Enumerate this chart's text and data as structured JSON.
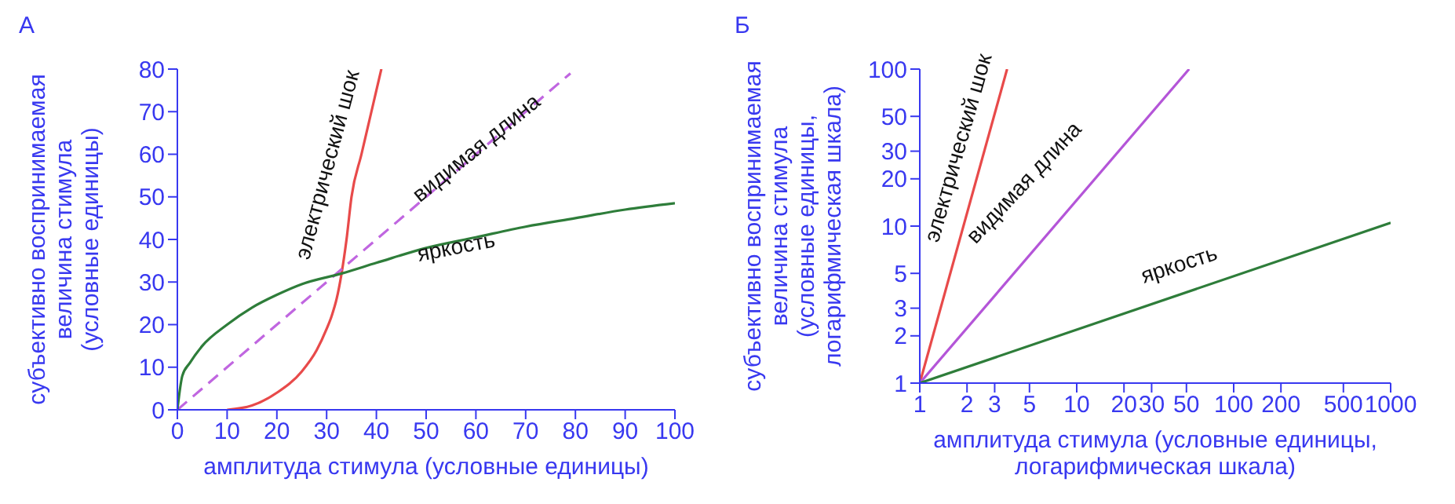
{
  "chart_data": [
    {
      "type": "line",
      "title": "А",
      "xlabel": "амплитуда стимула (условные единицы)",
      "ylabel": "субъективно воспринимаемая\nвеличина стимула\n(условные единицы)",
      "xlim": [
        0,
        100
      ],
      "xticks": [
        0,
        10,
        20,
        30,
        40,
        50,
        60,
        70,
        80,
        90,
        100
      ],
      "ylim": [
        0,
        80
      ],
      "yticks": [
        0,
        10,
        20,
        30,
        40,
        50,
        60,
        70,
        80
      ],
      "series": [
        {
          "name": "электрический шок",
          "color": "#e84a4a",
          "line_style": "solid",
          "x": [
            10,
            15,
            20,
            25,
            28,
            30,
            31,
            32,
            33,
            34,
            35,
            37,
            39,
            41
          ],
          "values": [
            0,
            1,
            4,
            9,
            14,
            19,
            22,
            26,
            32,
            40,
            50,
            60,
            70,
            80
          ]
        },
        {
          "name": "видимая длина",
          "color": "#c066e0",
          "line_style": "dashed",
          "x": [
            0,
            79
          ],
          "values": [
            0,
            79
          ]
        },
        {
          "name": "яркость",
          "color": "#2e7d3a",
          "line_style": "solid",
          "x": [
            0,
            1,
            2.5,
            5,
            10,
            15,
            20,
            25,
            33,
            40,
            50,
            60,
            70,
            80,
            90,
            100
          ],
          "values": [
            0,
            8,
            11,
            15,
            20,
            24,
            27,
            29.5,
            32,
            34.5,
            38,
            40.5,
            43,
            45,
            47,
            48.5
          ]
        }
      ]
    },
    {
      "type": "line",
      "title": "Б",
      "xlabel": "амплитуда стимула (условные единицы,\nлогарифмическая шкала)",
      "ylabel": "субъективно воспринимаемая\nвеличина стимула\n(условные единицы,\nлогарифмическая шкала)",
      "log": "xy",
      "xlim": [
        1,
        1000
      ],
      "xticks": [
        1,
        2,
        3,
        5,
        10,
        20,
        30,
        50,
        100,
        200,
        500,
        1000
      ],
      "ylim": [
        1,
        100
      ],
      "yticks": [
        1,
        2,
        3,
        5,
        10,
        20,
        30,
        50,
        100
      ],
      "series": [
        {
          "name": "электрический шок",
          "color": "#e84a4a",
          "line_style": "solid",
          "x": [
            1,
            3.6
          ],
          "values": [
            1,
            100
          ]
        },
        {
          "name": "видимая длина",
          "color": "#b455d8",
          "line_style": "solid",
          "x": [
            1,
            52
          ],
          "values": [
            1,
            100
          ]
        },
        {
          "name": "яркость",
          "color": "#2e7d3a",
          "line_style": "solid",
          "x": [
            1,
            1000
          ],
          "values": [
            1,
            10.5
          ]
        }
      ]
    }
  ]
}
